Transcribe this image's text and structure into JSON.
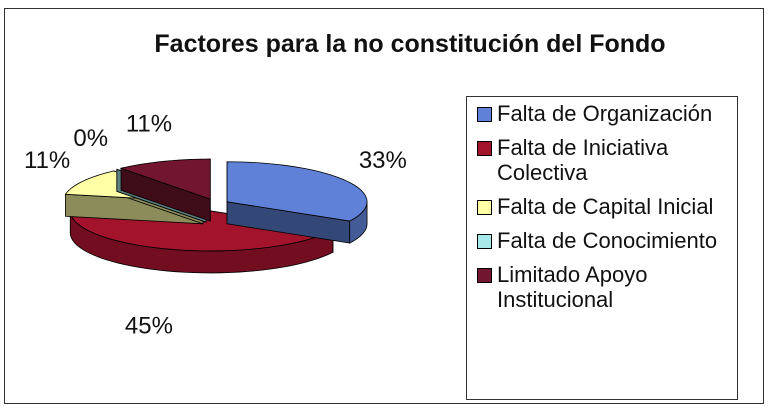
{
  "chart_data": {
    "type": "pie",
    "title": "Factores para la no constitución del Fondo",
    "categories": [
      "Falta de Organización",
      "Falta de Iniciativa Colectiva",
      "Falta de Capital Inicial",
      "Falta de Conocimiento",
      "Limitado Apoyo Institucional"
    ],
    "values": [
      33,
      45,
      11,
      0,
      11
    ],
    "value_labels": [
      "33%",
      "45%",
      "11%",
      "0%",
      "11%"
    ],
    "colors": [
      "#5f82d8",
      "#a3142c",
      "#ffffa6",
      "#a8eaea",
      "#721530"
    ],
    "legend": "right"
  }
}
